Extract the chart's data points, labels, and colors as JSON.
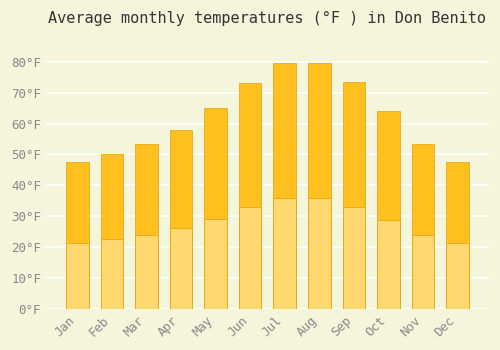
{
  "title": "Average monthly temperatures (°F ) in Don Benito",
  "months": [
    "Jan",
    "Feb",
    "Mar",
    "Apr",
    "May",
    "Jun",
    "Jul",
    "Aug",
    "Sep",
    "Oct",
    "Nov",
    "Dec"
  ],
  "values": [
    47.5,
    50.0,
    53.5,
    58.0,
    65.0,
    73.0,
    79.5,
    79.5,
    73.5,
    64.0,
    53.5,
    47.5
  ],
  "bar_color_top": "#FFC020",
  "bar_color_bottom": "#FFD870",
  "edge_color": "#E8A000",
  "background_color": "#F5F5DC",
  "grid_color": "#FFFFFF",
  "text_color": "#888888",
  "ylim": [
    0,
    88
  ],
  "yticks": [
    0,
    10,
    20,
    30,
    40,
    50,
    60,
    70,
    80
  ],
  "ytick_labels": [
    "0°F",
    "10°F",
    "20°F",
    "30°F",
    "40°F",
    "50°F",
    "60°F",
    "70°F",
    "80°F"
  ],
  "title_fontsize": 11,
  "tick_fontsize": 9
}
